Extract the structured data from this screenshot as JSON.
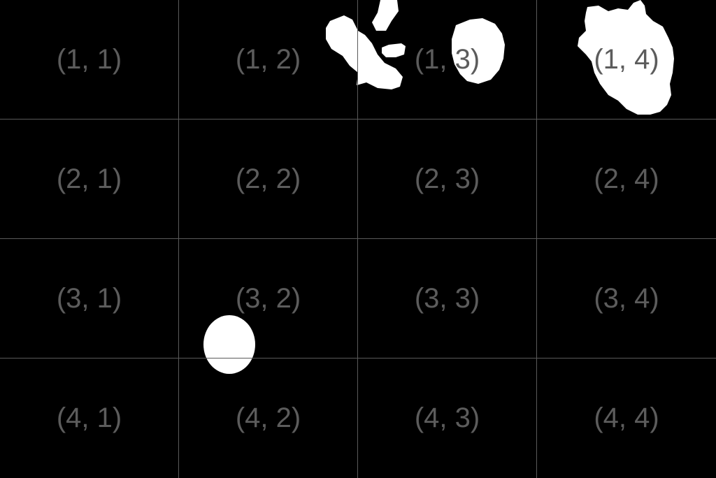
{
  "grid": {
    "rows": 4,
    "cols": 4,
    "labels": [
      [
        "(1, 1)",
        "(1, 2)",
        "(1, 3)",
        "(1, 4)"
      ],
      [
        "(2, 1)",
        "(2, 2)",
        "(2, 3)",
        "(2, 4)"
      ],
      [
        "(3, 1)",
        "(3, 2)",
        "(3, 3)",
        "(3, 4)"
      ],
      [
        "(4, 1)",
        "(4, 2)",
        "(4, 3)",
        "(4, 4)"
      ]
    ]
  },
  "colors": {
    "background": "#000000",
    "blob": "#ffffff",
    "grid_line": "#5a5a5a",
    "label": "#5c5c5c"
  }
}
